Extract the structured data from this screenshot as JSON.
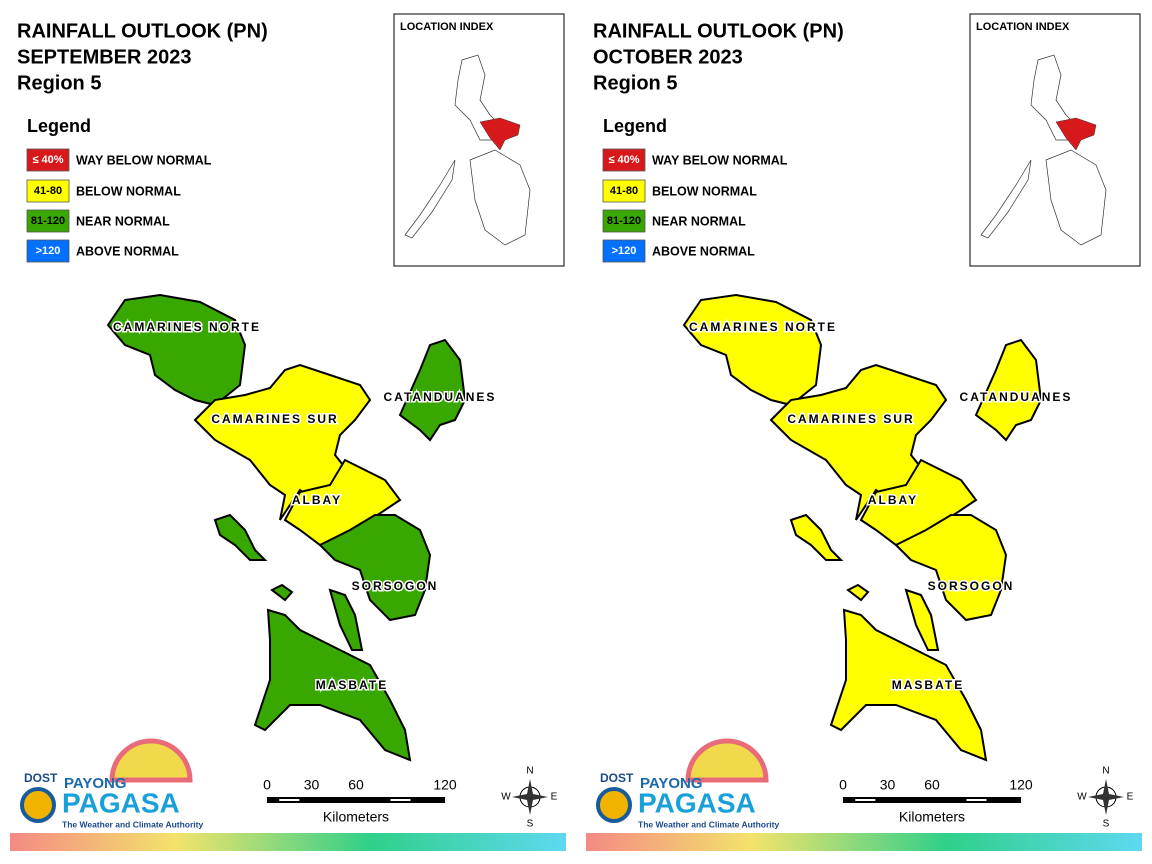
{
  "panels": [
    {
      "title": "RAINFALL OUTLOOK (PN)",
      "month": "SEPTEMBER 2023",
      "region": "Region 5",
      "legend_title": "Legend",
      "legend": [
        {
          "range": "≤ 40%",
          "label": "WAY BELOW NORMAL",
          "color": "#d7191c"
        },
        {
          "range": "41-80",
          "label": "BELOW NORMAL",
          "color": "#ffff00"
        },
        {
          "range": "81-120",
          "label": "NEAR NORMAL",
          "color": "#38a800"
        },
        {
          "range": ">120",
          "label": "ABOVE NORMAL",
          "color": "#0070ff"
        }
      ],
      "inset_title": "LOCATION INDEX",
      "provinces": [
        {
          "name": "CAMARINES NORTE",
          "color": "#38a800"
        },
        {
          "name": "CAMARINES SUR",
          "color": "#ffff00"
        },
        {
          "name": "CATANDUANES",
          "color": "#38a800"
        },
        {
          "name": "ALBAY",
          "color": "#ffff00"
        },
        {
          "name": "SORSOGON",
          "color": "#38a800"
        },
        {
          "name": "MASBATE",
          "color": "#38a800"
        }
      ],
      "scale": {
        "ticks": [
          0,
          30,
          60,
          120
        ],
        "unit": "Kilometers"
      },
      "compass": {
        "n": "N",
        "e": "E",
        "s": "S",
        "w": "W"
      },
      "logo": {
        "dost": "DOST",
        "payong": "PAYONG",
        "pagasa": "PAGASA",
        "tagline": "The Weather and Climate Authority"
      }
    },
    {
      "title": "RAINFALL OUTLOOK (PN)",
      "month": "OCTOBER 2023",
      "region": "Region 5",
      "legend_title": "Legend",
      "legend": [
        {
          "range": "≤ 40%",
          "label": "WAY BELOW NORMAL",
          "color": "#d7191c"
        },
        {
          "range": "41-80",
          "label": "BELOW NORMAL",
          "color": "#ffff00"
        },
        {
          "range": "81-120",
          "label": "NEAR NORMAL",
          "color": "#38a800"
        },
        {
          "range": ">120",
          "label": "ABOVE NORMAL",
          "color": "#0070ff"
        }
      ],
      "inset_title": "LOCATION INDEX",
      "provinces": [
        {
          "name": "CAMARINES NORTE",
          "color": "#ffff00"
        },
        {
          "name": "CAMARINES SUR",
          "color": "#ffff00"
        },
        {
          "name": "CATANDUANES",
          "color": "#ffff00"
        },
        {
          "name": "ALBAY",
          "color": "#ffff00"
        },
        {
          "name": "SORSOGON",
          "color": "#ffff00"
        },
        {
          "name": "MASBATE",
          "color": "#ffff00"
        }
      ],
      "scale": {
        "ticks": [
          0,
          30,
          60,
          120
        ],
        "unit": "Kilometers"
      },
      "compass": {
        "n": "N",
        "e": "E",
        "s": "S",
        "w": "W"
      },
      "logo": {
        "dost": "DOST",
        "payong": "PAYONG",
        "pagasa": "PAGASA",
        "tagline": "The Weather and Climate Authority"
      }
    }
  ]
}
